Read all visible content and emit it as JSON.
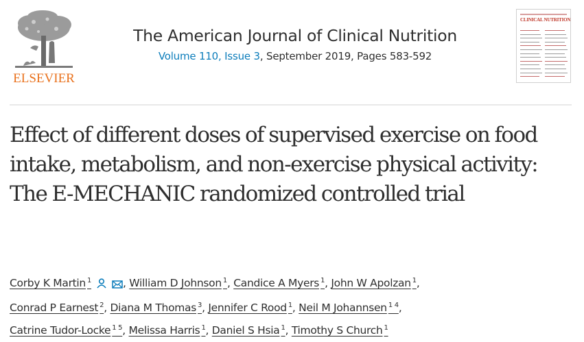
{
  "publisher": {
    "name": "ELSEVIER",
    "logo_icon": "elsevier-tree-icon",
    "brand_color": "#e9711c"
  },
  "journal": {
    "title": "The American Journal of Clinical Nutrition",
    "volume_label": "Volume 110, Issue 3",
    "meta_rest": ", September 2019, Pages 583-592",
    "link_color": "#0c7dbb",
    "cover_title": "CLINICAL NUTRITION"
  },
  "article": {
    "title": "Effect of different doses of supervised exercise on food intake, metabolism, and non-exercise physical activity: The E-MECHANIC randomized controlled trial"
  },
  "authors": [
    {
      "name": "Corby K Martin",
      "sup": "1",
      "icons": [
        "person-icon",
        "envelope-icon"
      ],
      "sep": ", "
    },
    {
      "name": "William D Johnson",
      "sup": "1",
      "sep": ", "
    },
    {
      "name": "Candice A Myers",
      "sup": "1",
      "sep": ", "
    },
    {
      "name": "John W Apolzan",
      "sup": "1",
      "sep": ","
    },
    {
      "name": "Conrad P Earnest",
      "sup": "2",
      "sep": ", "
    },
    {
      "name": "Diana M Thomas",
      "sup": "3",
      "sep": ", "
    },
    {
      "name": "Jennifer C Rood",
      "sup": "1",
      "sep": ", "
    },
    {
      "name": "Neil M Johannsen",
      "sup": "1 4",
      "sep": ","
    },
    {
      "name": "Catrine Tudor-Locke",
      "sup": "1 5",
      "sep": ", "
    },
    {
      "name": "Melissa Harris",
      "sup": "1",
      "sep": ", "
    },
    {
      "name": "Daniel S Hsia",
      "sup": "1",
      "sep": ", "
    },
    {
      "name": "Timothy S Church",
      "sup": "1",
      "sep": ""
    }
  ]
}
